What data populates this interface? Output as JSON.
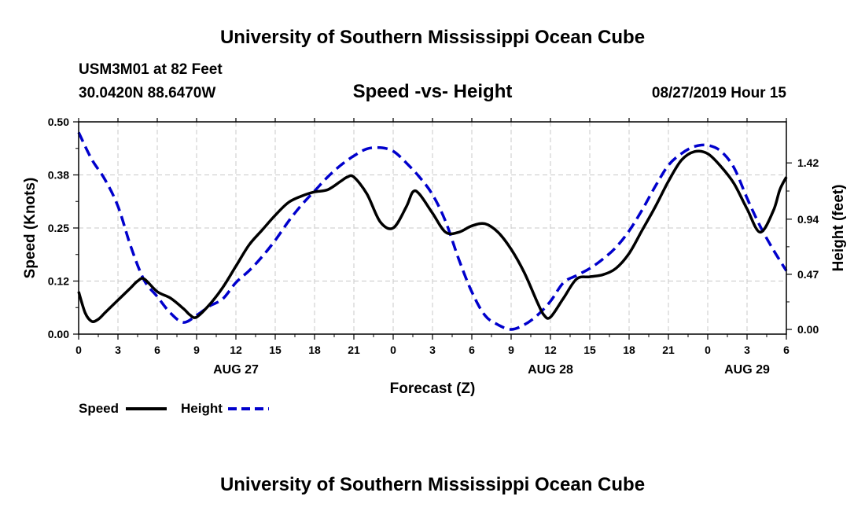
{
  "header": {
    "title": "University of Southern Mississippi Ocean Cube",
    "station": "USM3M01 at 82 Feet",
    "location": "30.0420N 88.6470W",
    "timestamp": "08/27/2019 Hour 15"
  },
  "footer": {
    "title": "University of Southern Mississippi Ocean Cube"
  },
  "chart_data": {
    "type": "line",
    "title": "Speed -vs- Height",
    "xlabel": "Forecast (Z)",
    "ylabel_left": "Speed (Knots)",
    "ylabel_right": "Height (feet)",
    "x_range_hours": [
      0,
      54
    ],
    "xticks": [
      {
        "h": 0,
        "label": "0"
      },
      {
        "h": 3,
        "label": "3"
      },
      {
        "h": 6,
        "label": "6"
      },
      {
        "h": 9,
        "label": "9"
      },
      {
        "h": 12,
        "label": "12"
      },
      {
        "h": 15,
        "label": "15"
      },
      {
        "h": 18,
        "label": "18"
      },
      {
        "h": 21,
        "label": "21"
      },
      {
        "h": 24,
        "label": "0"
      },
      {
        "h": 27,
        "label": "3"
      },
      {
        "h": 30,
        "label": "6"
      },
      {
        "h": 33,
        "label": "9"
      },
      {
        "h": 36,
        "label": "12"
      },
      {
        "h": 39,
        "label": "15"
      },
      {
        "h": 42,
        "label": "18"
      },
      {
        "h": 45,
        "label": "21"
      },
      {
        "h": 48,
        "label": "0"
      },
      {
        "h": 51,
        "label": "3"
      },
      {
        "h": 54,
        "label": "6"
      }
    ],
    "date_labels": [
      {
        "h": 12,
        "label": "AUG 27"
      },
      {
        "h": 36,
        "label": "AUG 28"
      },
      {
        "h": 51,
        "label": "AUG 29"
      }
    ],
    "y_left": {
      "range": [
        0,
        0.5
      ],
      "ticks": [
        "0.00",
        "0.12",
        "0.25",
        "0.38",
        "0.50"
      ]
    },
    "y_right": {
      "range": [
        -0.04,
        1.77
      ],
      "ticks": [
        {
          "v": 0.0,
          "label": "0.00"
        },
        {
          "v": 0.47,
          "label": "0.47"
        },
        {
          "v": 0.94,
          "label": "0.94"
        },
        {
          "v": 1.42,
          "label": "1.42"
        }
      ]
    },
    "grid": true,
    "legend": [
      {
        "name": "Speed",
        "color": "#000000",
        "style": "solid"
      },
      {
        "name": "Height",
        "color": "#0000cc",
        "style": "dashed"
      }
    ],
    "series": [
      {
        "name": "Speed",
        "axis": "left",
        "color": "#000000",
        "x": [
          0,
          0.5,
          1,
          1.5,
          2,
          3,
          4,
          4.5,
          5,
          6,
          7,
          8,
          8.5,
          9,
          10,
          11,
          12,
          13,
          14,
          15,
          16,
          17,
          18,
          19,
          20,
          20.5,
          21,
          22,
          23,
          24,
          25,
          25.5,
          26,
          27,
          28,
          29,
          30,
          31,
          32,
          33,
          34,
          35,
          35.5,
          36,
          37,
          38,
          39,
          40,
          41,
          42,
          43,
          44,
          45,
          46,
          47,
          48,
          49,
          50,
          51,
          52,
          53,
          53.5,
          54
        ],
        "values": [
          0.1,
          0.05,
          0.03,
          0.035,
          0.05,
          0.08,
          0.11,
          0.125,
          0.13,
          0.1,
          0.085,
          0.06,
          0.045,
          0.04,
          0.07,
          0.11,
          0.16,
          0.21,
          0.245,
          0.28,
          0.31,
          0.325,
          0.335,
          0.34,
          0.36,
          0.37,
          0.37,
          0.33,
          0.265,
          0.25,
          0.3,
          0.335,
          0.33,
          0.285,
          0.24,
          0.24,
          0.255,
          0.26,
          0.24,
          0.2,
          0.145,
          0.075,
          0.045,
          0.04,
          0.085,
          0.13,
          0.135,
          0.14,
          0.155,
          0.19,
          0.245,
          0.3,
          0.36,
          0.41,
          0.43,
          0.425,
          0.395,
          0.355,
          0.295,
          0.24,
          0.29,
          0.34,
          0.37
        ]
      },
      {
        "name": "Height",
        "axis": "right",
        "color": "#0000cc",
        "x": [
          0,
          1,
          2,
          3,
          4,
          5,
          6,
          7,
          8,
          9,
          10,
          11,
          12,
          13,
          14,
          15,
          16,
          17,
          18,
          19,
          20,
          21,
          22,
          23,
          24,
          25,
          26,
          27,
          28,
          29,
          30,
          31,
          32,
          33,
          34,
          35,
          36,
          37,
          38,
          39,
          40,
          41,
          42,
          43,
          44,
          45,
          46,
          47,
          48,
          49,
          50,
          51,
          52,
          53,
          54
        ],
        "values": [
          1.68,
          1.45,
          1.28,
          1.05,
          0.7,
          0.42,
          0.28,
          0.14,
          0.06,
          0.12,
          0.2,
          0.26,
          0.4,
          0.5,
          0.62,
          0.76,
          0.92,
          1.06,
          1.18,
          1.3,
          1.4,
          1.48,
          1.54,
          1.55,
          1.52,
          1.42,
          1.3,
          1.15,
          0.92,
          0.6,
          0.32,
          0.12,
          0.04,
          0.0,
          0.04,
          0.12,
          0.24,
          0.4,
          0.46,
          0.52,
          0.6,
          0.7,
          0.84,
          1.02,
          1.22,
          1.4,
          1.5,
          1.56,
          1.57,
          1.52,
          1.38,
          1.12,
          0.88,
          0.68,
          0.5
        ]
      }
    ]
  }
}
